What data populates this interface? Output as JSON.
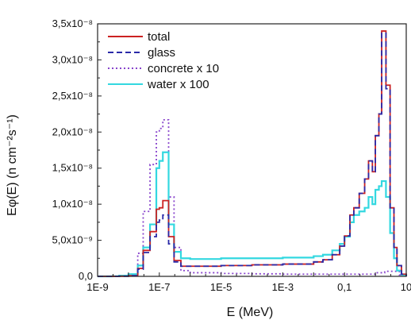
{
  "chart_data": {
    "type": "line",
    "title": "",
    "xlabel": "E (MeV)",
    "ylabel": "Eφ(E) (n cm⁻²s⁻¹)",
    "xscale": "log",
    "xlim": [
      1e-09,
      10
    ],
    "ylim": [
      0,
      3.5e-08
    ],
    "x_ticks": [
      1e-09,
      1e-07,
      1e-05,
      0.001,
      0.1,
      10
    ],
    "x_tick_labels": [
      "1E-9",
      "1E-7",
      "1E-5",
      "1E-3",
      "0,1",
      "10"
    ],
    "y_ticks": [
      0,
      5e-09,
      1e-08,
      1.5e-08,
      2e-08,
      2.5e-08,
      3e-08,
      3.5e-08
    ],
    "y_tick_labels": [
      "0,0",
      "5,0x10⁻⁹",
      "1,0x10⁻⁸",
      "1,5x10⁻⁸",
      "2,0x10⁻⁸",
      "2,5x10⁻⁸",
      "3,0x10⁻⁸",
      "3,5x10⁻⁸"
    ],
    "grid": false,
    "legend_position": "top-left",
    "step_plot": true,
    "series": [
      {
        "name": "total",
        "color": "#cc2222",
        "dash": "solid",
        "points": [
          [
            1e-09,
            0
          ],
          [
            2e-09,
            0
          ],
          [
            3e-09,
            5e-12
          ],
          [
            5e-09,
            2e-11
          ],
          [
            1e-08,
            1e-10
          ],
          [
            2e-08,
            1.1e-09
          ],
          [
            3e-08,
            3.6e-09
          ],
          [
            5e-08,
            6.2e-09
          ],
          [
            8e-08,
            9.3e-09
          ],
          [
            1e-07,
            9.5e-09
          ],
          [
            1.3e-07,
            1.05e-08
          ],
          [
            2e-07,
            5.5e-09
          ],
          [
            3e-07,
            2.2e-09
          ],
          [
            5e-07,
            1.4e-09
          ],
          [
            1e-06,
            1.4e-09
          ],
          [
            1e-05,
            1.5e-09
          ],
          [
            0.0001,
            1.6e-09
          ],
          [
            0.001,
            1.7e-09
          ],
          [
            0.01,
            2e-09
          ],
          [
            0.02,
            2.3e-09
          ],
          [
            0.04,
            3e-09
          ],
          [
            0.07,
            4.2e-09
          ],
          [
            0.1,
            5.6e-09
          ],
          [
            0.15,
            8.5e-09
          ],
          [
            0.2,
            9.5e-09
          ],
          [
            0.3,
            1.15e-08
          ],
          [
            0.45,
            1.35e-08
          ],
          [
            0.6,
            1.6e-08
          ],
          [
            0.8,
            1.45e-08
          ],
          [
            1,
            1.95e-08
          ],
          [
            1.3,
            2.25e-08
          ],
          [
            1.6,
            3.4e-08
          ],
          [
            2.2,
            2.65e-08
          ],
          [
            3,
            9.5e-09
          ],
          [
            4,
            4e-09
          ],
          [
            5,
            1.5e-09
          ],
          [
            7,
            3e-10
          ],
          [
            10,
            0
          ]
        ]
      },
      {
        "name": "glass",
        "color": "#2a2aa8",
        "dash": "dashed",
        "points": [
          [
            1e-09,
            0
          ],
          [
            2e-09,
            0
          ],
          [
            3e-09,
            5e-12
          ],
          [
            5e-09,
            2e-11
          ],
          [
            1e-08,
            1e-10
          ],
          [
            2e-08,
            1e-09
          ],
          [
            3e-08,
            3.3e-09
          ],
          [
            5e-08,
            5.5e-09
          ],
          [
            8e-08,
            7.5e-09
          ],
          [
            1e-07,
            7.8e-09
          ],
          [
            1.3e-07,
            8.5e-09
          ],
          [
            2e-07,
            4.5e-09
          ],
          [
            3e-07,
            2e-09
          ],
          [
            5e-07,
            1.4e-09
          ],
          [
            1e-06,
            1.4e-09
          ],
          [
            1e-05,
            1.5e-09
          ],
          [
            0.0001,
            1.6e-09
          ],
          [
            0.001,
            1.7e-09
          ],
          [
            0.01,
            2e-09
          ],
          [
            0.02,
            2.3e-09
          ],
          [
            0.04,
            3e-09
          ],
          [
            0.07,
            4.2e-09
          ],
          [
            0.1,
            5.6e-09
          ],
          [
            0.15,
            8.5e-09
          ],
          [
            0.2,
            9.5e-09
          ],
          [
            0.3,
            1.15e-08
          ],
          [
            0.45,
            1.35e-08
          ],
          [
            0.6,
            1.6e-08
          ],
          [
            0.8,
            1.45e-08
          ],
          [
            1,
            1.95e-08
          ],
          [
            1.3,
            2.25e-08
          ],
          [
            1.6,
            3.37e-08
          ],
          [
            2.2,
            2.6e-08
          ],
          [
            3,
            9.5e-09
          ],
          [
            4,
            4e-09
          ],
          [
            5,
            1.5e-09
          ],
          [
            7,
            3e-10
          ],
          [
            10,
            0
          ]
        ]
      },
      {
        "name": "concrete x 10",
        "color": "#8844cc",
        "dash": "dotted",
        "points": [
          [
            1e-09,
            0
          ],
          [
            2e-09,
            0
          ],
          [
            3e-09,
            1e-11
          ],
          [
            5e-09,
            5e-11
          ],
          [
            1e-08,
            3e-10
          ],
          [
            2e-08,
            3.2e-09
          ],
          [
            3e-08,
            9e-09
          ],
          [
            5e-08,
            1.55e-08
          ],
          [
            8e-08,
            2e-08
          ],
          [
            1e-07,
            2.05e-08
          ],
          [
            1.3e-07,
            2.17e-08
          ],
          [
            2e-07,
            1.1e-08
          ],
          [
            3e-07,
            4e-09
          ],
          [
            5e-07,
            8e-10
          ],
          [
            1e-06,
            5e-10
          ],
          [
            1e-05,
            4e-10
          ],
          [
            0.0001,
            3.5e-10
          ],
          [
            0.001,
            3e-10
          ],
          [
            0.01,
            3e-10
          ],
          [
            0.1,
            3e-10
          ],
          [
            0.5,
            3e-10
          ],
          [
            1,
            5e-10
          ],
          [
            2,
            7e-10
          ],
          [
            4,
            7e-10
          ],
          [
            6,
            2e-10
          ],
          [
            10,
            0
          ]
        ]
      },
      {
        "name": "water x 100",
        "color": "#33d8e0",
        "dash": "solid",
        "points": [
          [
            1e-09,
            0
          ],
          [
            2e-09,
            0
          ],
          [
            3e-09,
            2e-11
          ],
          [
            5e-09,
            1e-10
          ],
          [
            1e-08,
            3e-10
          ],
          [
            2e-08,
            1.5e-09
          ],
          [
            3e-08,
            4e-09
          ],
          [
            5e-08,
            7.2e-09
          ],
          [
            8e-08,
            1.5e-08
          ],
          [
            1e-07,
            1.6e-08
          ],
          [
            1.3e-07,
            1.72e-08
          ],
          [
            2e-07,
            7.2e-09
          ],
          [
            3e-07,
            3.4e-09
          ],
          [
            5e-07,
            2.5e-09
          ],
          [
            1e-06,
            2.4e-09
          ],
          [
            1e-05,
            2.5e-09
          ],
          [
            0.0001,
            2.5e-09
          ],
          [
            0.001,
            2.6e-09
          ],
          [
            0.01,
            2.8e-09
          ],
          [
            0.02,
            3e-09
          ],
          [
            0.04,
            3.6e-09
          ],
          [
            0.07,
            4.5e-09
          ],
          [
            0.1,
            5.5e-09
          ],
          [
            0.15,
            7.5e-09
          ],
          [
            0.2,
            8.5e-09
          ],
          [
            0.3,
            9e-09
          ],
          [
            0.45,
            9.5e-09
          ],
          [
            0.6,
            1.1e-08
          ],
          [
            0.8,
            1e-08
          ],
          [
            1,
            1.2e-08
          ],
          [
            1.3,
            1.25e-08
          ],
          [
            1.6,
            1.32e-08
          ],
          [
            2.2,
            1.1e-08
          ],
          [
            3,
            6e-09
          ],
          [
            4,
            2.5e-09
          ],
          [
            5,
            8e-10
          ],
          [
            7,
            2e-10
          ],
          [
            10,
            0
          ]
        ]
      }
    ]
  }
}
